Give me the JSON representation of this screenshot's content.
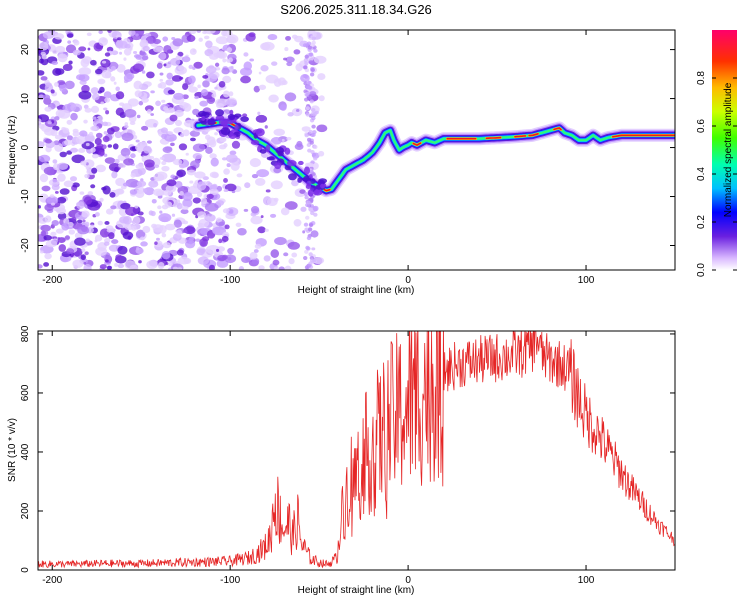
{
  "title": "S206.2025.311.18.34.G26",
  "chart_data": [
    {
      "type": "heatmap",
      "xlabel": "Height of straight line (km)",
      "ylabel": "Frequency (Hz)",
      "xlim": [
        -208,
        150
      ],
      "ylim": [
        -25,
        24
      ],
      "xticks": [
        -200,
        -100,
        0,
        100
      ],
      "yticks": [
        -20,
        -10,
        0,
        10,
        20
      ],
      "colorbar": {
        "label": "Normalized spectral amplitude",
        "range": [
          0,
          1
        ],
        "ticks": [
          "0.0",
          "0.2",
          "0.4",
          "0.6",
          "0.8"
        ]
      },
      "ridge": {
        "x": [
          -118,
          -112,
          -105,
          -100,
          -95,
          -90,
          -85,
          -80,
          -75,
          -70,
          -65,
          -60,
          -55,
          -50,
          -46,
          -43,
          -40,
          -37,
          -35,
          -30,
          -25,
          -20,
          -16,
          -13,
          -10,
          -8,
          -5,
          -3,
          0,
          2,
          5,
          10,
          15,
          20,
          30,
          40,
          50,
          60,
          70,
          75,
          80,
          85,
          88,
          92,
          96,
          100,
          104,
          108,
          112,
          120,
          130,
          140,
          150
        ],
        "freq": [
          4.5,
          4.8,
          5.2,
          5.0,
          4.0,
          3.0,
          1.5,
          0.5,
          -1.0,
          -2.5,
          -4.0,
          -5.5,
          -7.0,
          -8.0,
          -8.8,
          -8.5,
          -7.0,
          -5.5,
          -4.5,
          -3.5,
          -2.5,
          -1.0,
          1.0,
          3.0,
          3.5,
          1.5,
          -0.5,
          0.0,
          0.5,
          1.0,
          0.5,
          1.5,
          1.0,
          1.8,
          1.8,
          1.8,
          2.0,
          2.2,
          2.5,
          3.0,
          3.5,
          4.0,
          3.0,
          2.5,
          1.5,
          1.5,
          2.5,
          1.5,
          2.0,
          2.5,
          2.5,
          2.5,
          2.5
        ]
      }
    },
    {
      "type": "line",
      "xlabel": "Height of straight line (km)",
      "ylabel": "SNR (10 * v/v)",
      "xlim": [
        -208,
        150
      ],
      "ylim": [
        0,
        810
      ],
      "xticks": [
        -200,
        -100,
        0,
        100
      ],
      "yticks": [
        0,
        200,
        400,
        600,
        800
      ],
      "series": [
        {
          "name": "SNR",
          "color": "#e52626",
          "x": [
            -208,
            -190,
            -170,
            -150,
            -130,
            -110,
            -100,
            -90,
            -85,
            -80,
            -77,
            -75,
            -72,
            -70,
            -67,
            -65,
            -62,
            -60,
            -57,
            -55,
            -50,
            -45,
            -40,
            -38,
            -35,
            -33,
            -30,
            -28,
            -25,
            -20,
            -15,
            -10,
            -5,
            0,
            5,
            10,
            15,
            20,
            25,
            30,
            40,
            50,
            60,
            65,
            70,
            72,
            75,
            80,
            85,
            90,
            95,
            100,
            105,
            110,
            115,
            120,
            125,
            130,
            135,
            140,
            145,
            150
          ],
          "y": [
            20,
            20,
            22,
            22,
            25,
            28,
            30,
            40,
            55,
            80,
            120,
            250,
            180,
            140,
            160,
            110,
            170,
            90,
            60,
            40,
            25,
            20,
            40,
            160,
            240,
            320,
            300,
            340,
            380,
            420,
            460,
            500,
            530,
            560,
            600,
            620,
            650,
            670,
            690,
            700,
            710,
            720,
            730,
            740,
            760,
            800,
            730,
            710,
            700,
            680,
            600,
            520,
            480,
            430,
            380,
            330,
            280,
            240,
            200,
            160,
            130,
            100
          ]
        }
      ]
    }
  ]
}
